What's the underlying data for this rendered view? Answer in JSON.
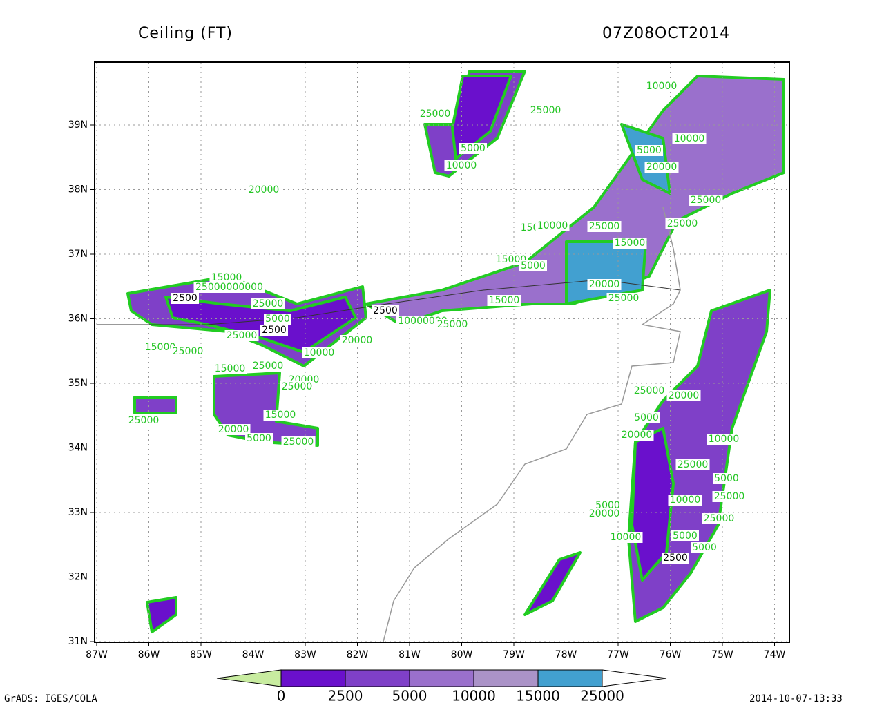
{
  "header": {
    "title": "Ceiling (FT)",
    "time": "07Z08OCT2014"
  },
  "axes": {
    "x_labels": [
      "87W",
      "86W",
      "85W",
      "84W",
      "83W",
      "82W",
      "81W",
      "80W",
      "79W",
      "78W",
      "77W",
      "76W",
      "75W",
      "74W"
    ],
    "y_labels": [
      "31N",
      "32N",
      "33N",
      "34N",
      "35N",
      "36N",
      "37N",
      "38N",
      "39N"
    ]
  },
  "colorbar": {
    "labels": [
      "0",
      "2500",
      "5000",
      "10000",
      "15000",
      "25000"
    ],
    "colors": [
      "#c8eca0",
      "#6a10cc",
      "#7f40c8",
      "#9a70cc",
      "#ab93c8",
      "#42a0d0",
      "#ffffff"
    ]
  },
  "contour_labels": [
    "25000",
    "25000",
    "5000",
    "10000",
    "10000",
    "5000",
    "10000",
    "20000",
    "25000",
    "25000",
    "15000",
    "25000",
    "10000",
    "15000",
    "20000",
    "25000",
    "15000",
    "5000",
    "15000",
    "10000000",
    "25000",
    "2500",
    "20000",
    "25000",
    "15000",
    "25000000000",
    "2500",
    "5000",
    "2500",
    "25000",
    "20000",
    "10000",
    "15000",
    "25000",
    "15000",
    "25000",
    "20000",
    "25000",
    "25000",
    "20000",
    "25000",
    "5000",
    "15000",
    "25000",
    "20000",
    "5000",
    "20000",
    "10000",
    "25000",
    "5000",
    "25000",
    "10000",
    "25000",
    "5000",
    "20000",
    "10000",
    "5000",
    "5000",
    "2500"
  ],
  "footer": {
    "left": "GrADS: IGES/COLA",
    "right": "2014-10-07-13:33"
  }
}
